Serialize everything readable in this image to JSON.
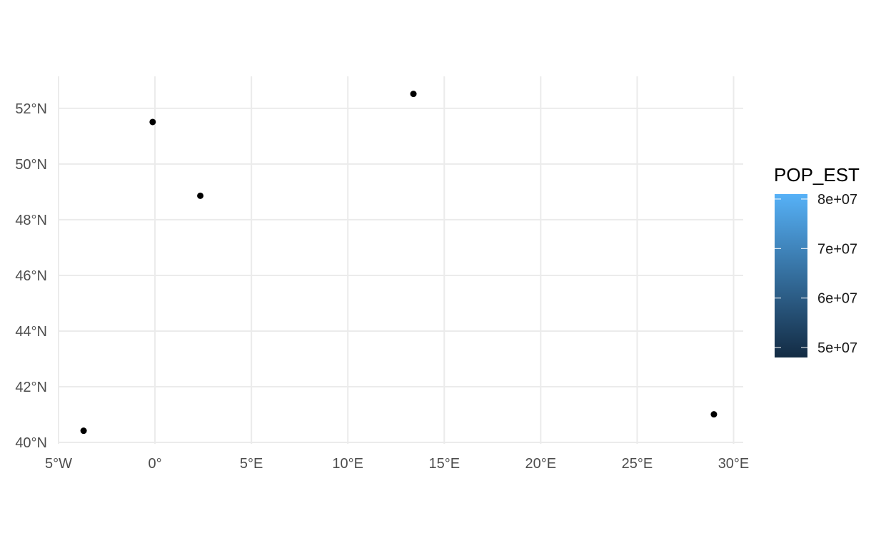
{
  "chart_data": {
    "type": "scatter",
    "title": "",
    "xlabel": "",
    "ylabel": "",
    "xlim": [
      -5,
      30.5
    ],
    "ylim": [
      39.95,
      53.15
    ],
    "grid": true,
    "x_ticks": [
      {
        "value": -5,
        "label": "5°W"
      },
      {
        "value": 0,
        "label": "0°"
      },
      {
        "value": 5,
        "label": "5°E"
      },
      {
        "value": 10,
        "label": "10°E"
      },
      {
        "value": 15,
        "label": "15°E"
      },
      {
        "value": 20,
        "label": "20°E"
      },
      {
        "value": 25,
        "label": "25°E"
      },
      {
        "value": 30,
        "label": "30°E"
      }
    ],
    "y_ticks": [
      {
        "value": 40,
        "label": "40°N"
      },
      {
        "value": 42,
        "label": "42°N"
      },
      {
        "value": 44,
        "label": "44°N"
      },
      {
        "value": 46,
        "label": "46°N"
      },
      {
        "value": 48,
        "label": "48°N"
      },
      {
        "value": 50,
        "label": "50°N"
      },
      {
        "value": 52,
        "label": "52°N"
      }
    ],
    "points": [
      {
        "x": -3.7,
        "y": 40.42
      },
      {
        "x": -0.12,
        "y": 51.51
      },
      {
        "x": 2.35,
        "y": 48.86
      },
      {
        "x": 13.4,
        "y": 52.52
      },
      {
        "x": 28.98,
        "y": 41.01
      }
    ],
    "point_color": "#000000",
    "legend": {
      "title": "POP_EST",
      "position": "right",
      "min": 48000000,
      "max": 81000000,
      "color_low": "#132B43",
      "color_high": "#56B1F7",
      "breaks": [
        {
          "value": 50000000,
          "label": "5e+07"
        },
        {
          "value": 60000000,
          "label": "6e+07"
        },
        {
          "value": 70000000,
          "label": "7e+07"
        },
        {
          "value": 80000000,
          "label": "8e+07"
        }
      ]
    }
  }
}
